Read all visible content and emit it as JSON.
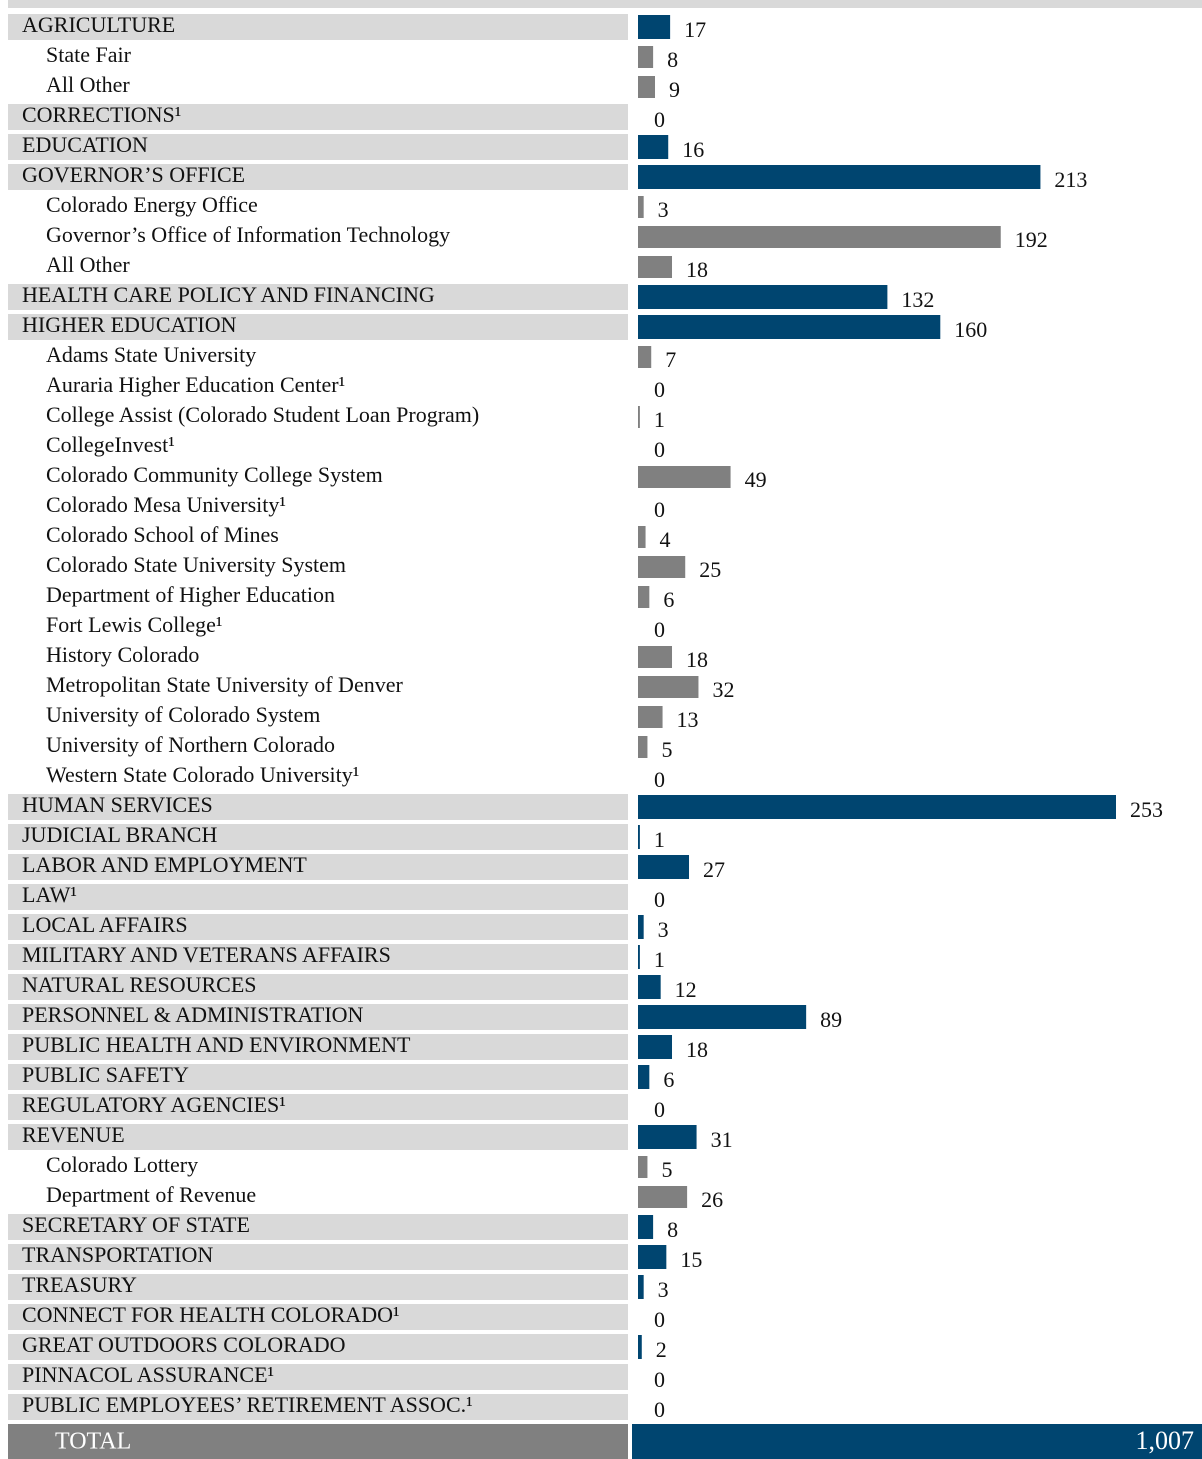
{
  "chart_data": {
    "type": "bar",
    "orientation": "horizontal",
    "categories": [
      "AGRICULTURE",
      "State Fair",
      "All Other",
      "CORRECTIONS¹",
      "EDUCATION",
      "GOVERNOR’S OFFICE",
      "Colorado Energy Office",
      "Governor’s Office of Information Technology",
      "All Other",
      "HEALTH CARE POLICY AND FINANCING",
      "HIGHER EDUCATION",
      "Adams State University",
      "Auraria Higher Education Center¹",
      "College Assist (Colorado Student Loan Program)",
      "CollegeInvest¹",
      "Colorado Community College System",
      "Colorado Mesa University¹",
      "Colorado School of Mines",
      "Colorado State University System",
      "Department of Higher Education",
      "Fort Lewis College¹",
      "History Colorado",
      "Metropolitan State University of Denver",
      "University of Colorado System",
      "University of Northern Colorado",
      "Western State Colorado University¹",
      "HUMAN SERVICES",
      "JUDICIAL BRANCH",
      "LABOR AND EMPLOYMENT",
      "LAW¹",
      "LOCAL AFFAIRS",
      "MILITARY AND VETERANS AFFAIRS",
      "NATURAL RESOURCES",
      "PERSONNEL & ADMINISTRATION",
      "PUBLIC HEALTH AND ENVIRONMENT",
      "PUBLIC SAFETY",
      "REGULATORY AGENCIES¹",
      "REVENUE",
      "Colorado Lottery",
      "Department of Revenue",
      "SECRETARY OF STATE",
      "TRANSPORTATION",
      "TREASURY",
      "CONNECT FOR HEALTH COLORADO¹",
      "GREAT OUTDOORS COLORADO",
      "PINNACOL ASSURANCE¹",
      "PUBLIC EMPLOYEES’ RETIREMENT ASSOC.¹"
    ],
    "values": [
      17,
      8,
      9,
      0,
      16,
      213,
      3,
      192,
      18,
      132,
      160,
      7,
      0,
      1,
      0,
      49,
      0,
      4,
      25,
      6,
      0,
      18,
      32,
      13,
      5,
      0,
      253,
      1,
      27,
      0,
      3,
      1,
      12,
      89,
      18,
      6,
      0,
      31,
      5,
      26,
      8,
      15,
      3,
      0,
      2,
      0,
      0
    ],
    "colors": [
      "#004570",
      "#808080",
      "#808080",
      "#004570",
      "#004570",
      "#004570",
      "#808080",
      "#808080",
      "#808080",
      "#004570",
      "#004570",
      "#808080",
      "#808080",
      "#808080",
      "#808080",
      "#808080",
      "#808080",
      "#808080",
      "#808080",
      "#808080",
      "#808080",
      "#808080",
      "#808080",
      "#808080",
      "#808080",
      "#808080",
      "#004570",
      "#004570",
      "#004570",
      "#004570",
      "#004570",
      "#004570",
      "#004570",
      "#004570",
      "#004570",
      "#004570",
      "#004570",
      "#004570",
      "#808080",
      "#808080",
      "#004570",
      "#004570",
      "#004570",
      "#004570",
      "#004570",
      "#004570",
      "#004570"
    ],
    "total": {
      "label": "TOTAL",
      "value": 1007,
      "value_label": "1,007"
    }
  }
}
